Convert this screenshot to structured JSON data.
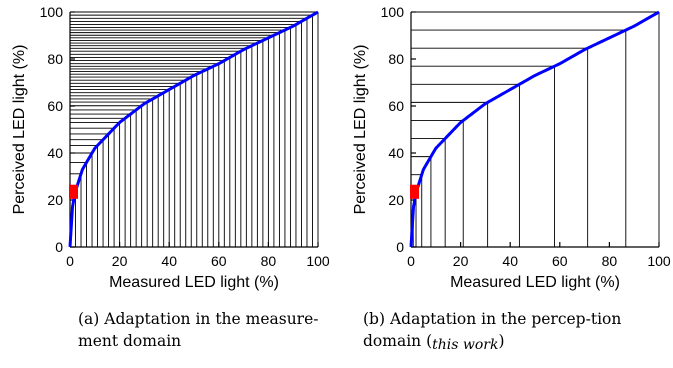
{
  "chart_data": [
    {
      "type": "line",
      "xlabel": "Measured LED light (%)",
      "ylabel": "Perceived LED light (%)",
      "xlim": [
        0,
        100
      ],
      "ylim": [
        0,
        100
      ],
      "xticks": [
        "0",
        "20",
        "40",
        "60",
        "80",
        "100"
      ],
      "yticks": [
        "0",
        "20",
        "40",
        "60",
        "80",
        "100"
      ],
      "curve": {
        "x": [
          0,
          1,
          2,
          5,
          10,
          20,
          30,
          40,
          50,
          60,
          70,
          80,
          90,
          100
        ],
        "y": [
          0,
          17,
          23,
          33,
          42,
          53,
          61,
          67,
          73,
          78,
          84,
          89,
          94,
          100
        ]
      },
      "levels": 45,
      "spacing": "uniform in measured light (x)",
      "highlight": {
        "color": "#ff0000",
        "y_range": [
          20.5,
          26.5
        ]
      },
      "curve_color": "#0000ff",
      "caption": {
        "label": "(a)",
        "text": "Adaptation in the measure-ment domain"
      }
    },
    {
      "type": "line",
      "xlabel": "Measured LED light (%)",
      "ylabel": "Perceived LED light (%)",
      "xlim": [
        0,
        100
      ],
      "ylim": [
        0,
        100
      ],
      "xticks": [
        "0",
        "20",
        "40",
        "60",
        "80",
        "100"
      ],
      "yticks": [
        "0",
        "20",
        "40",
        "60",
        "80",
        "100"
      ],
      "curve": {
        "x": [
          0,
          1,
          2,
          5,
          10,
          20,
          30,
          40,
          50,
          60,
          70,
          80,
          90,
          100
        ],
        "y": [
          0,
          17,
          23,
          33,
          42,
          53,
          61,
          67,
          73,
          78,
          84,
          89,
          94,
          100
        ]
      },
      "levels": 13,
      "spacing": "uniform in perceived light (y)",
      "highlight": {
        "color": "#ff0000",
        "y_range": [
          20.5,
          26.5
        ]
      },
      "curve_color": "#0000ff",
      "caption": {
        "label": "(b)",
        "text": "Adaptation in the percep-tion domain",
        "note": "this work"
      }
    }
  ]
}
